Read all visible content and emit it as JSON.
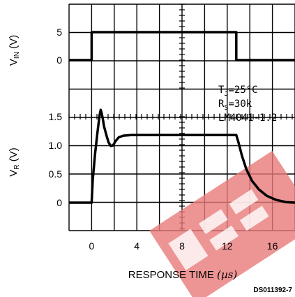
{
  "chart_data": {
    "type": "line",
    "xlabel_prefix": "RESPONSE TIME",
    "xlabel_unit": "(µs)",
    "x_ticks": [
      0,
      4,
      8,
      12,
      16
    ],
    "xlim": [
      -2,
      18
    ],
    "top_panel": {
      "ylabel_main": "V",
      "ylabel_sub": "IN",
      "ylabel_unit": " (V)",
      "y_ticks": [
        5,
        0
      ],
      "ylim": [
        -1,
        7
      ],
      "series": [
        {
          "x": [
            -2,
            0,
            0,
            12.8,
            12.8,
            18
          ],
          "y": [
            0,
            0,
            5,
            5,
            0,
            0
          ]
        }
      ]
    },
    "bottom_panel": {
      "ylabel_main": "V",
      "ylabel_sub": "R",
      "ylabel_unit": " (V)",
      "y_ticks": [
        1.5,
        1.0,
        0.5,
        0
      ],
      "ylim": [
        -0.5,
        1.5
      ],
      "series": [
        {
          "x": [
            -2,
            0,
            0.1,
            0.3,
            0.5,
            0.7,
            0.8,
            0.9,
            1.0,
            1.1,
            1.3,
            1.5,
            1.7,
            1.9,
            2.1,
            2.4,
            2.8,
            3.5,
            5,
            8,
            12.8,
            13.0,
            13.3,
            13.7,
            14.2,
            14.8,
            15.5,
            16.3,
            17.2,
            18
          ],
          "y": [
            0,
            0,
            0.4,
            0.85,
            1.2,
            1.52,
            1.62,
            1.55,
            1.45,
            1.33,
            1.18,
            1.05,
            0.99,
            1.0,
            1.07,
            1.14,
            1.17,
            1.18,
            1.18,
            1.18,
            1.18,
            1.05,
            0.82,
            0.58,
            0.38,
            0.23,
            0.12,
            0.05,
            0.01,
            0
          ]
        }
      ]
    },
    "annotations": {
      "tj": "T_J=25°C",
      "rs": "R_S=30k",
      "part": "LM4041-1.2"
    },
    "figure_code": "DS011392-7"
  }
}
